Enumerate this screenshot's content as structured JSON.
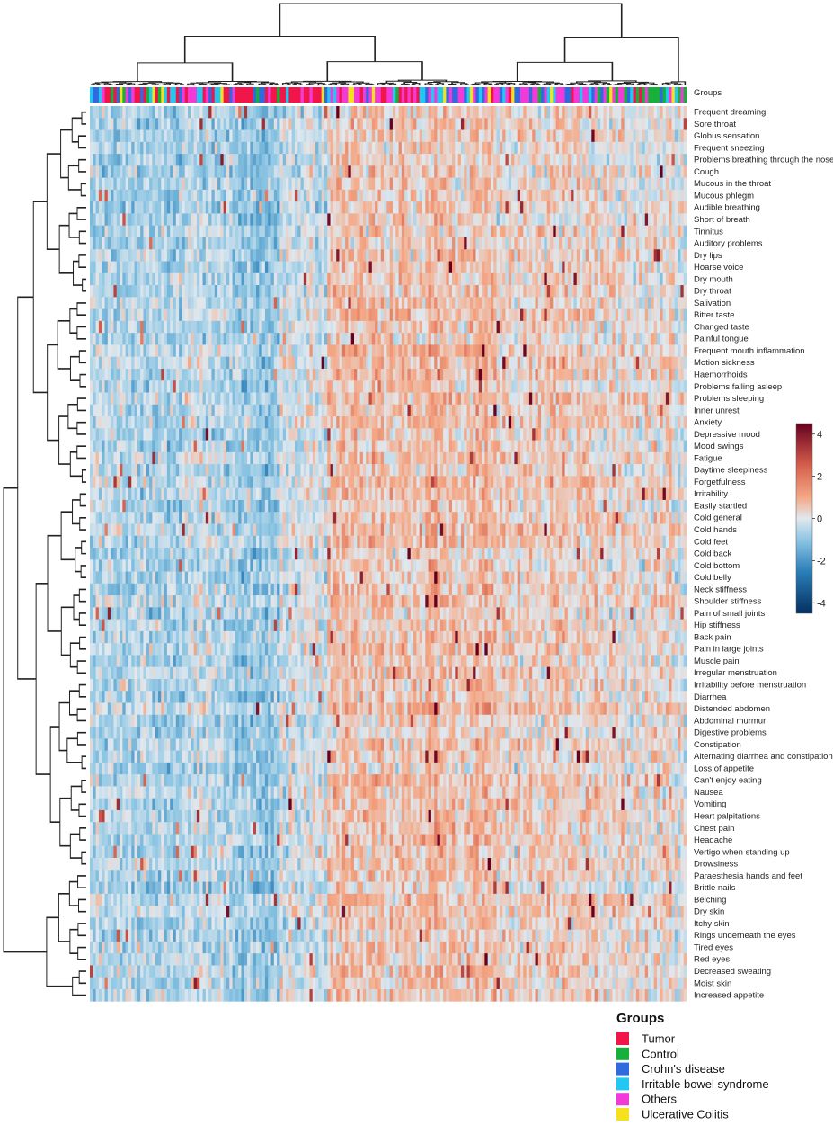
{
  "chart_data": {
    "type": "heatmap",
    "annotation_label": "Groups",
    "rows": [
      "Frequent dreaming",
      "Sore throat",
      "Globus sensation",
      "Frequent sneezing",
      "Problems breathing through the nose",
      "Cough",
      "Mucous in the throat",
      "Mucous phlegm",
      "Audible breathing",
      "Short of breath",
      "Tinnitus",
      "Auditory problems",
      "Dry lips",
      "Hoarse voice",
      "Dry mouth",
      "Dry throat",
      "Salivation",
      "Bitter taste",
      "Changed taste",
      "Painful tongue",
      "Frequent mouth inflammation",
      "Motion sickness",
      "Haemorrhoids",
      "Problems falling asleep",
      "Problems sleeping",
      "Inner unrest",
      "Anxiety",
      "Depressive mood",
      "Mood swings",
      "Fatigue",
      "Daytime sleepiness",
      "Forgetfulness",
      "Irritability",
      "Easily startled",
      "Cold general",
      "Cold hands",
      "Cold feet",
      "Cold back",
      "Cold bottom",
      "Cold belly",
      "Neck stiffness",
      "Shoulder stiffness",
      "Pain of small joints",
      "Hip stiffness",
      "Back pain",
      "Pain in large joints",
      "Muscle pain",
      "Irregular menstruation",
      "Irritability before menstruation",
      "Diarrhea",
      "Distended abdomen",
      "Abdominal murmur",
      "Digestive problems",
      "Constipation",
      "Alternating diarrhea and constipation",
      "Loss of appetite",
      "Can't enjoy eating",
      "Nausea",
      "Vomiting",
      "Heart palpitations",
      "Chest pain",
      "Headache",
      "Vertigo when standing up",
      "Drowsiness",
      "Paraesthesia hands and feet",
      "Brittle nails",
      "Belching",
      "Dry skin",
      "Itchy skin",
      "Rings underneath the eyes",
      "Tired eyes",
      "Red eyes",
      "Decreased sweating",
      "Moist skin",
      "Increased appetite"
    ],
    "color_scale": {
      "min": -4.5,
      "max": 4.5,
      "ticks": [
        4,
        2,
        0,
        -2,
        -4
      ],
      "tick_labels": [
        "4",
        "2",
        "0",
        "-2",
        "-4"
      ],
      "stops": [
        {
          "value": -4.5,
          "color": "#053061"
        },
        {
          "value": -2.5,
          "color": "#2b7fb8"
        },
        {
          "value": -1.0,
          "color": "#8ec6e3"
        },
        {
          "value": 0.0,
          "color": "#e1e8ee"
        },
        {
          "value": 1.0,
          "color": "#f4a886"
        },
        {
          "value": 2.5,
          "color": "#d6604d"
        },
        {
          "value": 4.5,
          "color": "#67001f"
        }
      ]
    },
    "groups_legend": {
      "title": "Groups",
      "items": [
        {
          "label": "Tumor",
          "color": "#f0164a"
        },
        {
          "label": "Control",
          "color": "#17b03a"
        },
        {
          "label": "Crohn's disease",
          "color": "#2f6ae0"
        },
        {
          "label": "Irritable bowel syndrome",
          "color": "#21c8f2"
        },
        {
          "label": "Others",
          "color": "#f23ad9"
        },
        {
          "label": "Ulcerative Colitis",
          "color": "#f5e21c"
        }
      ]
    },
    "column_segments": [
      {
        "cols": 26,
        "mean": -0.55,
        "group_weights": [
          0.32,
          0.18,
          0.15,
          0.12,
          0.15,
          0.08
        ]
      },
      {
        "cols": 22,
        "mean": -0.45,
        "group_weights": [
          0.45,
          0.06,
          0.12,
          0.07,
          0.26,
          0.04
        ]
      },
      {
        "cols": 16,
        "mean": -0.85,
        "group_weights": [
          0.55,
          0.05,
          0.1,
          0.05,
          0.22,
          0.03
        ]
      },
      {
        "cols": 16,
        "mean": -0.25,
        "group_weights": [
          0.6,
          0.04,
          0.08,
          0.05,
          0.2,
          0.03
        ]
      },
      {
        "cols": 55,
        "mean": 0.6,
        "group_weights": [
          0.16,
          0.03,
          0.18,
          0.16,
          0.42,
          0.05
        ]
      },
      {
        "cols": 36,
        "mean": 0.4,
        "group_weights": [
          0.18,
          0.04,
          0.16,
          0.16,
          0.4,
          0.06
        ]
      },
      {
        "cols": 30,
        "mean": 0.15,
        "group_weights": [
          0.18,
          0.25,
          0.1,
          0.12,
          0.28,
          0.07
        ]
      }
    ]
  }
}
